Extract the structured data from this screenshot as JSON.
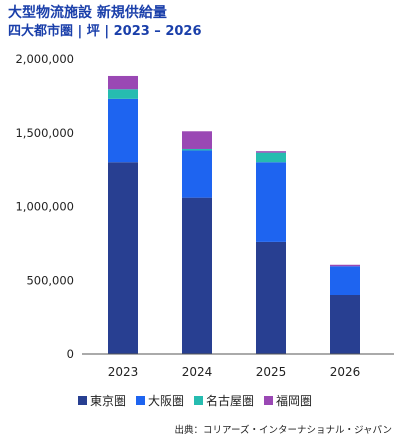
{
  "title": "大型物流施設 新規供給量",
  "subtitle": "四大都市圏 | 坪 | 2023 – 2026",
  "source": "出典：コリアーズ・インターナショナル・ジャパン",
  "colors": {
    "東京圏": "#283f91",
    "大阪圏": "#1e64f0",
    "名古屋圏": "#26bcb0",
    "福岡圏": "#9a48b4"
  },
  "chart_data": {
    "type": "bar",
    "stacked": true,
    "categories": [
      "2023",
      "2024",
      "2025",
      "2026"
    ],
    "series": [
      {
        "name": "東京圏",
        "values": [
          1300000,
          1060000,
          760000,
          400000
        ]
      },
      {
        "name": "大阪圏",
        "values": [
          430000,
          320000,
          540000,
          195000
        ]
      },
      {
        "name": "名古屋圏",
        "values": [
          65000,
          10000,
          65000,
          0
        ]
      },
      {
        "name": "福岡圏",
        "values": [
          90000,
          120000,
          10000,
          10000
        ]
      }
    ],
    "ylim": [
      0,
      2000000
    ],
    "yticks": [
      "2,000,000",
      "1,500,000",
      "1,000,000",
      "500,000",
      "0"
    ],
    "ytick_values": [
      2000000,
      1500000,
      1000000,
      500000,
      0
    ],
    "legend_position": "bottom",
    "grid": false
  }
}
